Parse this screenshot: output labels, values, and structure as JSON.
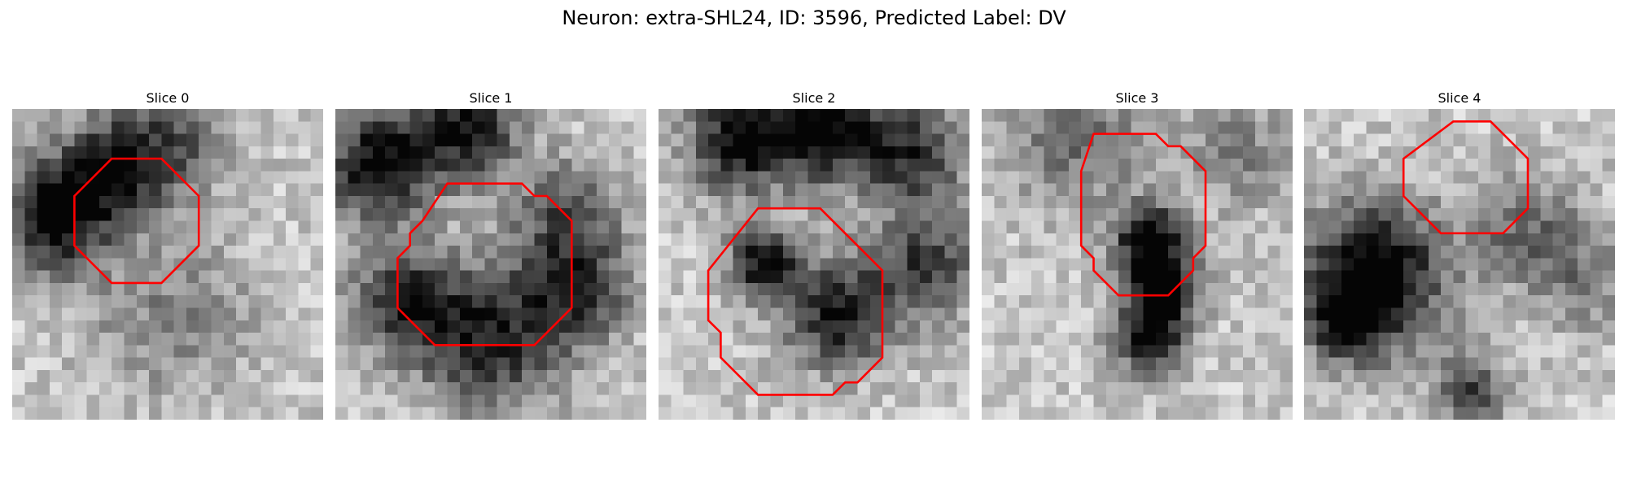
{
  "figure": {
    "title": "Neuron: extra-SHL24, ID: 3596, Predicted Label: DV",
    "roi_color": "#ff0000",
    "colormap": "gray",
    "grid_size": 25,
    "panels": [
      {
        "title": "Slice 0",
        "seed": 11,
        "dark_blobs": [
          {
            "cx": 3,
            "cy": 8,
            "r": 3,
            "strength": 0.85
          },
          {
            "cx": 8,
            "cy": 4,
            "r": 3,
            "strength": 0.65
          },
          {
            "cx": 13,
            "cy": 2,
            "r": 3,
            "strength": 0.35
          },
          {
            "cx": 12,
            "cy": 16,
            "r": 5,
            "strength": 0.25
          }
        ],
        "roi_pixels": [
          [
            8,
            4
          ],
          [
            12,
            4
          ],
          [
            15,
            7
          ],
          [
            15,
            11
          ],
          [
            12,
            14
          ],
          [
            8,
            14
          ],
          [
            5,
            11
          ],
          [
            5,
            7
          ]
        ]
      },
      {
        "title": "Slice 1",
        "seed": 23,
        "dark_blobs": [
          {
            "cx": 3,
            "cy": 4,
            "r": 3,
            "strength": 0.8
          },
          {
            "cx": 10,
            "cy": 1,
            "r": 3,
            "strength": 0.7
          },
          {
            "cx": 5,
            "cy": 15,
            "r": 3,
            "strength": 0.6
          },
          {
            "cx": 12,
            "cy": 18,
            "r": 4,
            "strength": 0.65
          },
          {
            "cx": 19,
            "cy": 14,
            "r": 3,
            "strength": 0.55
          },
          {
            "cx": 18,
            "cy": 8,
            "r": 3,
            "strength": 0.45
          }
        ],
        "roi_pixels": [
          [
            9,
            6
          ],
          [
            15,
            6
          ],
          [
            16,
            7
          ],
          [
            17,
            7
          ],
          [
            19,
            9
          ],
          [
            19,
            16
          ],
          [
            16,
            19
          ],
          [
            8,
            19
          ],
          [
            5,
            16
          ],
          [
            5,
            12
          ],
          [
            6,
            11
          ],
          [
            6,
            10
          ],
          [
            7,
            9
          ]
        ]
      },
      {
        "title": "Slice 2",
        "seed": 37,
        "dark_blobs": [
          {
            "cx": 6,
            "cy": 2,
            "r": 3,
            "strength": 0.75
          },
          {
            "cx": 13,
            "cy": 1,
            "r": 3,
            "strength": 0.8
          },
          {
            "cx": 20,
            "cy": 3,
            "r": 3,
            "strength": 0.6
          },
          {
            "cx": 8,
            "cy": 12,
            "r": 2,
            "strength": 0.75
          },
          {
            "cx": 14,
            "cy": 16,
            "r": 3,
            "strength": 0.7
          },
          {
            "cx": 21,
            "cy": 12,
            "r": 3,
            "strength": 0.55
          }
        ],
        "roi_pixels": [
          [
            8,
            8
          ],
          [
            13,
            8
          ],
          [
            18,
            13
          ],
          [
            18,
            20
          ],
          [
            16,
            22
          ],
          [
            15,
            22
          ],
          [
            14,
            23
          ],
          [
            8,
            23
          ],
          [
            5,
            20
          ],
          [
            5,
            18
          ],
          [
            4,
            17
          ],
          [
            4,
            13
          ]
        ]
      },
      {
        "title": "Slice 3",
        "seed": 53,
        "dark_blobs": [
          {
            "cx": 13,
            "cy": 10,
            "r": 2,
            "strength": 0.8
          },
          {
            "cx": 14,
            "cy": 14,
            "r": 2,
            "strength": 0.85
          },
          {
            "cx": 13,
            "cy": 18,
            "r": 2,
            "strength": 0.7
          },
          {
            "cx": 7,
            "cy": 2,
            "r": 4,
            "strength": 0.35
          },
          {
            "cx": 20,
            "cy": 3,
            "r": 3,
            "strength": 0.3
          }
        ],
        "roi_pixels": [
          [
            9,
            2
          ],
          [
            14,
            2
          ],
          [
            15,
            3
          ],
          [
            16,
            3
          ],
          [
            18,
            5
          ],
          [
            18,
            11
          ],
          [
            17,
            12
          ],
          [
            17,
            13
          ],
          [
            15,
            15
          ],
          [
            11,
            15
          ],
          [
            9,
            13
          ],
          [
            9,
            12
          ],
          [
            8,
            11
          ],
          [
            8,
            5
          ]
        ]
      },
      {
        "title": "Slice 4",
        "seed": 71,
        "dark_blobs": [
          {
            "cx": 5,
            "cy": 13,
            "r": 4,
            "strength": 0.9
          },
          {
            "cx": 3,
            "cy": 17,
            "r": 2,
            "strength": 0.5
          },
          {
            "cx": 13,
            "cy": 22,
            "r": 2,
            "strength": 0.5
          },
          {
            "cx": 17,
            "cy": 9,
            "r": 3,
            "strength": 0.35
          },
          {
            "cx": 22,
            "cy": 13,
            "r": 3,
            "strength": 0.3
          }
        ],
        "roi_pixels": [
          [
            12,
            1
          ],
          [
            15,
            1
          ],
          [
            18,
            4
          ],
          [
            18,
            8
          ],
          [
            16,
            10
          ],
          [
            11,
            10
          ],
          [
            8,
            7
          ],
          [
            8,
            4
          ]
        ]
      }
    ]
  }
}
